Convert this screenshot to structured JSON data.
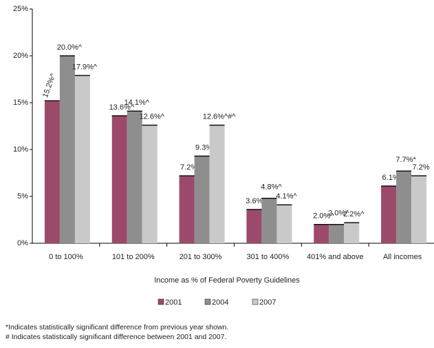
{
  "chart_data": {
    "type": "bar",
    "categories": [
      "0 to 100%",
      "101 to 200%",
      "201 to 300%",
      "301 to 400%",
      "401% and above",
      "All incomes"
    ],
    "series": [
      {
        "name": "2001",
        "color": "#9c4a6c",
        "values": [
          15.2,
          13.6,
          7.2,
          3.6,
          2.0,
          6.1
        ],
        "value_labels": [
          "15.2%^",
          "13.6%^",
          "7.2%",
          "3.6%^",
          "2.0%^",
          "6.1%"
        ]
      },
      {
        "name": "2004",
        "color": "#8e8e8e",
        "values": [
          20.0,
          14.1,
          9.3,
          4.8,
          2.0,
          7.7
        ],
        "value_labels": [
          "20.0%^",
          "14.1%^",
          "9.3%",
          "4.8%^",
          "2.0%^",
          "7.7%*"
        ]
      },
      {
        "name": "2007",
        "color": "#c9c9c9",
        "values": [
          17.9,
          12.6,
          12.6,
          4.1,
          2.2,
          7.2
        ],
        "value_labels": [
          "17.9%^",
          "12.6%^",
          "12.6%^#^",
          "4.1%^",
          "2.2%^",
          "7.2%"
        ]
      }
    ],
    "x_label": "Income as % of Federal Poverty Guidelines",
    "ylim": [
      0,
      25
    ],
    "yticks": [
      {
        "value": 0,
        "label": "0%"
      },
      {
        "value": 5,
        "label": "5%"
      },
      {
        "value": 10,
        "label": "10%"
      },
      {
        "value": 15,
        "label": "15%"
      },
      {
        "value": 20,
        "label": "20%"
      },
      {
        "value": 25,
        "label": "25%"
      }
    ],
    "grid": false,
    "legend": "bottom",
    "footnotes": [
      "*Indicates statistically significant difference from previous year shown.",
      "# Indicates statistically significant difference between 2001 and 2007."
    ]
  }
}
